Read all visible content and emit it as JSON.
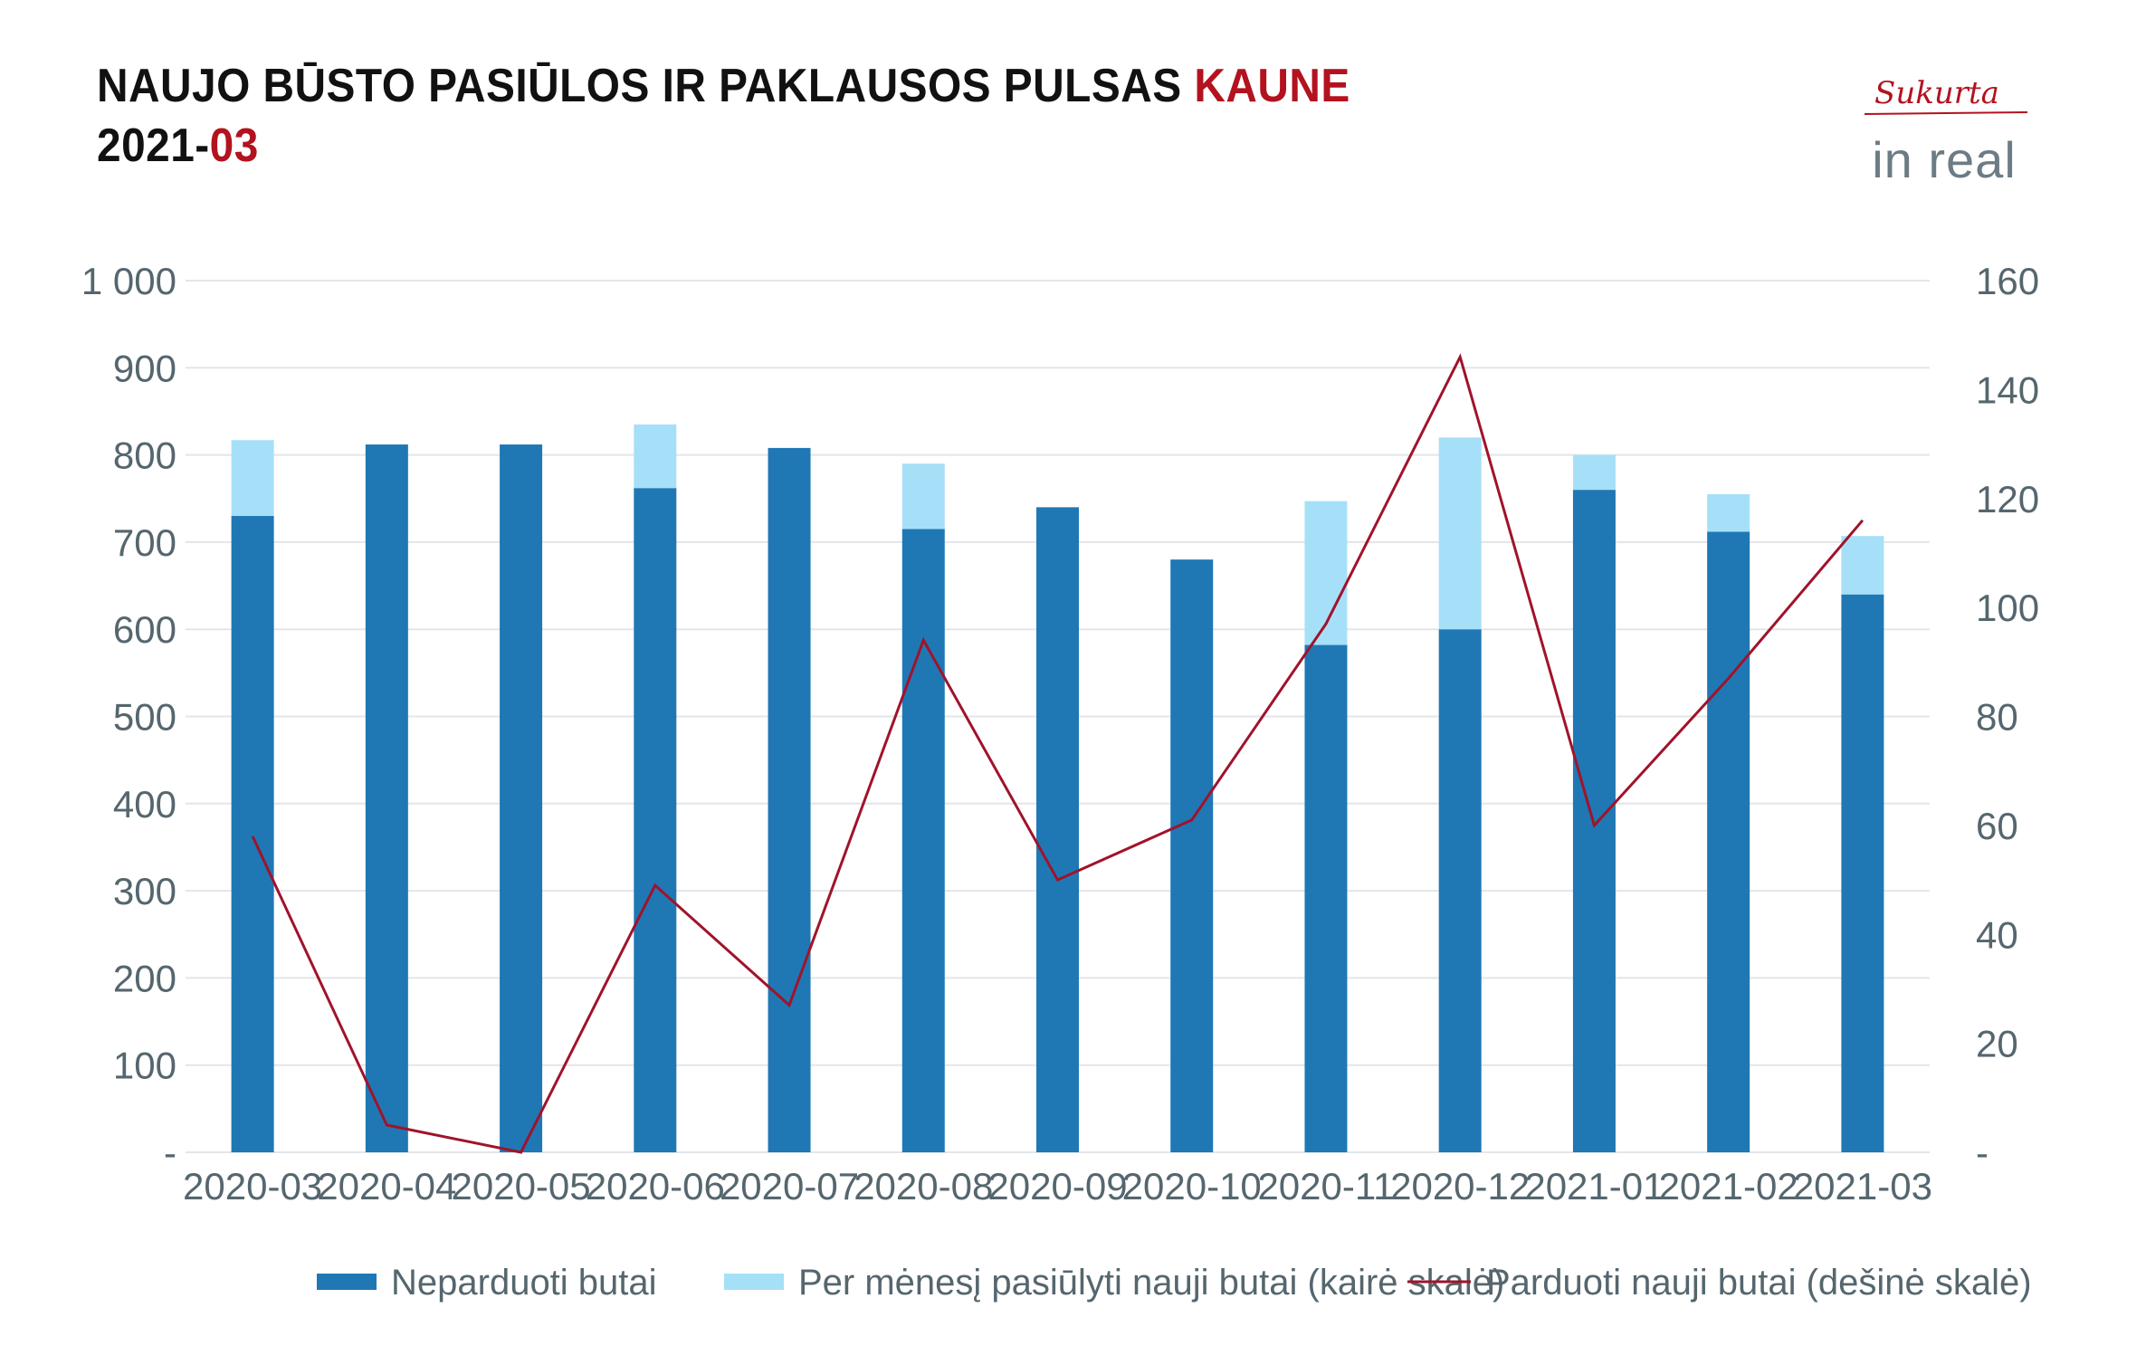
{
  "header": {
    "title_line1_main": "NAUJO BŪSTO PASIŪLOS IR PAKLAUSOS PULSAS ",
    "title_line1_accent": "KAUNE",
    "title_line2_main": "2021-",
    "title_line2_accent": "03"
  },
  "logo": {
    "tagline": "Sukurta",
    "brand": "in real"
  },
  "colors": {
    "unsold": "#1f78b4",
    "offered": "#a6e0f8",
    "sold_line": "#a0132b",
    "accent": "#b3121f",
    "grid": "#e3e6e8",
    "tick": "#55666e"
  },
  "chart_data": {
    "type": "bar",
    "stacked": true,
    "categories": [
      "2020-03",
      "2020-04",
      "2020-05",
      "2020-06",
      "2020-07",
      "2020-08",
      "2020-09",
      "2020-10",
      "2020-11",
      "2020-12",
      "2021-01",
      "2021-02",
      "2021-03"
    ],
    "series": [
      {
        "name": "Neparduoti butai",
        "kind": "bar",
        "axis": "left",
        "values": [
          730,
          812,
          812,
          762,
          808,
          715,
          740,
          680,
          582,
          600,
          760,
          712,
          640
        ]
      },
      {
        "name": "Per mėnesį pasiūlyti nauji butai (kairė skalė)",
        "kind": "bar",
        "axis": "left",
        "values": [
          87,
          0,
          0,
          73,
          0,
          75,
          0,
          0,
          165,
          220,
          40,
          43,
          67
        ]
      },
      {
        "name": "Parduoti nauji butai (dešinė skalė)",
        "kind": "line",
        "axis": "right",
        "values": [
          58,
          5,
          0,
          49,
          27,
          94,
          50,
          61,
          97,
          146,
          60,
          87,
          116
        ]
      }
    ],
    "left_axis": {
      "ylim": [
        0,
        1000
      ],
      "ticks": [
        0,
        100,
        200,
        300,
        400,
        500,
        600,
        700,
        800,
        900,
        1000
      ],
      "tick_labels": [
        "-",
        "100",
        "200",
        "300",
        "400",
        "500",
        "600",
        "700",
        "800",
        "900",
        "1 000"
      ]
    },
    "right_axis": {
      "ylim": [
        0,
        160
      ],
      "ticks": [
        0,
        20,
        40,
        60,
        80,
        100,
        120,
        140,
        160
      ],
      "tick_labels": [
        "-",
        "20",
        "40",
        "60",
        "80",
        "100",
        "120",
        "140",
        "160"
      ]
    },
    "grid": true,
    "legend_position": "bottom"
  }
}
